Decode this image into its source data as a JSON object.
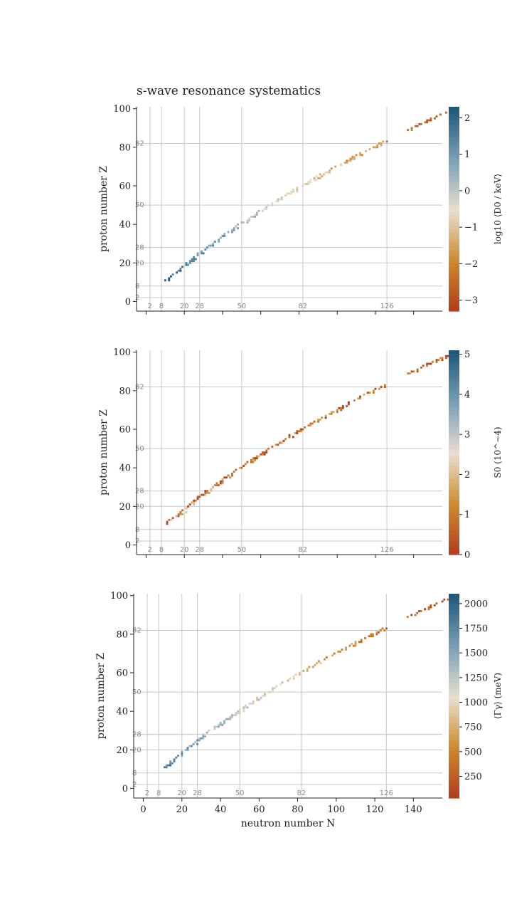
{
  "title": "s-wave resonance systematics",
  "colors": {
    "cmap": [
      "#b03a20",
      "#cc8a2c",
      "#e8dfcf",
      "#7a9fb6",
      "#1f5878"
    ],
    "grid": "#c8c8c8",
    "axis": "#222222",
    "magic_label": "#8a8a8a"
  },
  "chart_data": [
    {
      "type": "heatmap",
      "title": "s-wave resonance systematics",
      "xlabel": "",
      "ylabel": "proton number Z",
      "xlim": [
        -5,
        155
      ],
      "ylim": [
        -5,
        101
      ],
      "y_ticks": [
        0,
        20,
        40,
        60,
        80,
        100
      ],
      "x_ticks": [
        0,
        20,
        40,
        60,
        80,
        100,
        120,
        140
      ],
      "x_tick_labels_visible": false,
      "magic_N": [
        "2",
        "8",
        "20",
        "28",
        "50",
        "82",
        "126"
      ],
      "magic_Z": [
        "2",
        "8",
        "20",
        "28",
        "50",
        "82"
      ],
      "colorbar": {
        "label": "log10 ⟨D0 / keV⟩",
        "range": [
          -3.3,
          2.3
        ],
        "ticks": [
          "2",
          "1",
          "0",
          "−1",
          "−2",
          "−3"
        ],
        "tick_values": [
          2,
          1,
          0,
          -1,
          -2,
          -3
        ]
      },
      "trend": {
        "z_start": 11,
        "z_end": 98,
        "value_start": 2.1,
        "value_end": -2.9,
        "noise": 0.55
      }
    },
    {
      "type": "heatmap",
      "xlabel": "",
      "ylabel": "proton number Z",
      "xlim": [
        -5,
        155
      ],
      "ylim": [
        -5,
        101
      ],
      "y_ticks": [
        0,
        20,
        40,
        60,
        80,
        100
      ],
      "x_ticks": [
        0,
        20,
        40,
        60,
        80,
        100,
        120,
        140
      ],
      "x_tick_labels_visible": false,
      "magic_N": [
        "2",
        "8",
        "20",
        "28",
        "50",
        "82",
        "126"
      ],
      "magic_Z": [
        "2",
        "8",
        "20",
        "28",
        "50",
        "82"
      ],
      "colorbar": {
        "label": "S0 (10^−4)",
        "range": [
          0,
          5.1
        ],
        "ticks": [
          "5",
          "4",
          "3",
          "2",
          "1",
          "0"
        ],
        "tick_values": [
          5,
          4,
          3,
          2,
          1,
          0
        ]
      },
      "trend": {
        "z_start": 11,
        "z_end": 98,
        "value_start": 1.2,
        "value_end": 0.6,
        "noise": 1.1
      }
    },
    {
      "type": "heatmap",
      "xlabel": "neutron number N",
      "ylabel": "proton number Z",
      "xlim": [
        -5,
        155
      ],
      "ylim": [
        -5,
        101
      ],
      "y_ticks": [
        0,
        20,
        40,
        60,
        80,
        100
      ],
      "x_ticks": [
        0,
        20,
        40,
        60,
        80,
        100,
        120,
        140
      ],
      "x_tick_labels": [
        "0",
        "20",
        "40",
        "60",
        "80",
        "100",
        "120",
        "140"
      ],
      "x_tick_labels_visible": true,
      "magic_N": [
        "2",
        "8",
        "20",
        "28",
        "50",
        "82",
        "126"
      ],
      "magic_Z": [
        "2",
        "8",
        "20",
        "28",
        "50",
        "82"
      ],
      "colorbar": {
        "label": "⟨Γγ⟩ (meV)",
        "range": [
          30,
          2100
        ],
        "ticks": [
          "2000",
          "1750",
          "1500",
          "1250",
          "1000",
          "750",
          "500",
          "250"
        ],
        "tick_values": [
          2000,
          1750,
          1500,
          1250,
          1000,
          750,
          500,
          250
        ]
      },
      "trend": {
        "z_start": 11,
        "z_end": 98,
        "value_start": 1800,
        "value_end": 80,
        "noise": 250
      }
    }
  ]
}
